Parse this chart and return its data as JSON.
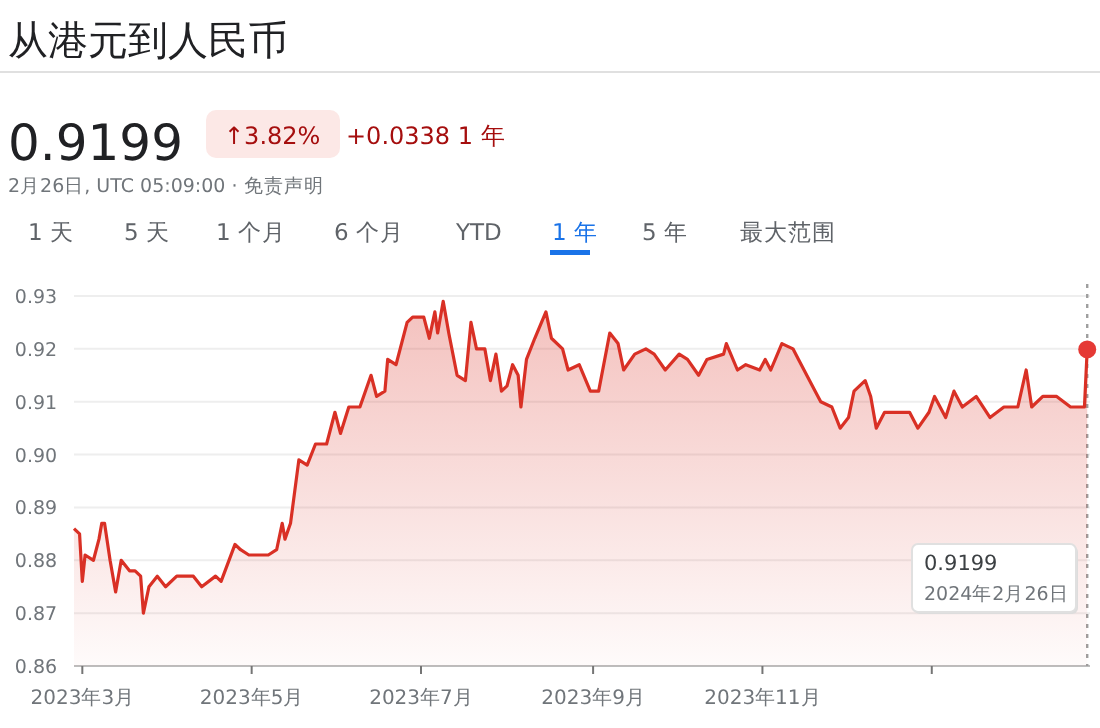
{
  "chart_data": {
    "type": "area",
    "title": "从港元到人民币",
    "annotations": [
      "0.9199",
      "↑3.82%",
      "+0.0338 1 年",
      "2月26日, UTC 05:09:00 · 免责声明",
      "1 天",
      "5 天",
      "1 个月",
      "6 个月",
      "YTD",
      "1 年",
      "5 年",
      "最大范围",
      "0.9199",
      "2024年2月26日"
    ],
    "x": [
      "2023-02-26",
      "2023-02-28",
      "2023-03-01",
      "2023-03-02",
      "2023-03-05",
      "2023-03-07",
      "2023-03-08",
      "2023-03-09",
      "2023-03-11",
      "2023-03-13",
      "2023-03-15",
      "2023-03-18",
      "2023-03-20",
      "2023-03-22",
      "2023-03-23",
      "2023-03-25",
      "2023-03-28",
      "2023-03-31",
      "2023-04-04",
      "2023-04-10",
      "2023-04-13",
      "2023-04-18",
      "2023-04-20",
      "2023-04-25",
      "2023-04-27",
      "2023-04-30",
      "2023-05-07",
      "2023-05-10",
      "2023-05-12",
      "2023-05-13",
      "2023-05-15",
      "2023-05-18",
      "2023-05-21",
      "2023-05-24",
      "2023-05-28",
      "2023-05-31",
      "2023-06-02",
      "2023-06-05",
      "2023-06-09",
      "2023-06-13",
      "2023-06-15",
      "2023-06-18",
      "2023-06-19",
      "2023-06-22",
      "2023-06-26",
      "2023-06-28",
      "2023-07-02",
      "2023-07-04",
      "2023-07-06",
      "2023-07-07",
      "2023-07-09",
      "2023-07-11",
      "2023-07-14",
      "2023-07-17",
      "2023-07-19",
      "2023-07-21",
      "2023-07-24",
      "2023-07-26",
      "2023-07-28",
      "2023-07-30",
      "2023-08-01",
      "2023-08-03",
      "2023-08-05",
      "2023-08-06",
      "2023-08-08",
      "2023-08-11",
      "2023-08-15",
      "2023-08-17",
      "2023-08-21",
      "2023-08-23",
      "2023-08-27",
      "2023-08-31",
      "2023-09-03",
      "2023-09-07",
      "2023-09-10",
      "2023-09-12",
      "2023-09-16",
      "2023-09-20",
      "2023-09-23",
      "2023-09-27",
      "2023-10-02",
      "2023-10-05",
      "2023-10-09",
      "2023-10-12",
      "2023-10-18",
      "2023-10-19",
      "2023-10-23",
      "2023-10-26",
      "2023-10-31",
      "2023-11-02",
      "2023-11-04",
      "2023-11-08",
      "2023-11-12",
      "2023-11-14",
      "2023-11-20",
      "2023-11-22",
      "2023-11-26",
      "2023-11-29",
      "2023-12-02",
      "2023-12-04",
      "2023-12-08",
      "2023-12-10",
      "2023-12-12",
      "2023-12-15",
      "2023-12-19",
      "2023-12-24",
      "2023-12-27",
      "2023-12-31",
      "2024-01-02",
      "2024-01-06",
      "2024-01-09",
      "2024-01-12",
      "2024-01-17",
      "2024-01-22",
      "2024-01-27",
      "2024-02-01",
      "2024-02-04",
      "2024-02-06",
      "2024-02-10",
      "2024-02-15",
      "2024-02-20",
      "2024-02-25",
      "2024-02-26"
    ],
    "series": [
      {
        "color": "#d93025",
        "values": [
          0.886,
          0.885,
          0.876,
          0.881,
          0.88,
          0.884,
          0.887,
          0.887,
          0.88,
          0.874,
          0.88,
          0.878,
          0.878,
          0.877,
          0.87,
          0.875,
          0.877,
          0.875,
          0.877,
          0.877,
          0.875,
          0.877,
          0.876,
          0.883,
          0.882,
          0.881,
          0.881,
          0.882,
          0.887,
          0.884,
          0.887,
          0.899,
          0.898,
          0.902,
          0.902,
          0.908,
          0.904,
          0.909,
          0.909,
          0.915,
          0.911,
          0.912,
          0.918,
          0.917,
          0.925,
          0.926,
          0.926,
          0.922,
          0.927,
          0.923,
          0.929,
          0.923,
          0.915,
          0.914,
          0.925,
          0.92,
          0.92,
          0.914,
          0.919,
          0.912,
          0.913,
          0.917,
          0.915,
          0.909,
          0.918,
          0.922,
          0.927,
          0.922,
          0.92,
          0.916,
          0.917,
          0.912,
          0.912,
          0.923,
          0.921,
          0.916,
          0.919,
          0.92,
          0.919,
          0.916,
          0.919,
          0.918,
          0.915,
          0.918,
          0.919,
          0.921,
          0.916,
          0.917,
          0.916,
          0.918,
          0.916,
          0.921,
          0.92,
          0.918,
          0.912,
          0.91,
          0.909,
          0.905,
          0.907,
          0.912,
          0.914,
          0.911,
          0.905,
          0.908,
          0.908,
          0.908,
          0.905,
          0.908,
          0.911,
          0.907,
          0.912,
          0.909,
          0.911,
          0.907,
          0.909,
          0.909,
          0.916,
          0.909,
          0.911,
          0.911,
          0.909,
          0.909,
          0.9199
        ]
      },
      {
        "type": "scatter",
        "color": "#e53935",
        "x": [
          "2024-02-26"
        ],
        "values": [
          0.9199
        ]
      }
    ],
    "xlim": [
      "2023-02-26",
      "2024-02-27"
    ],
    "xticks": [
      {
        "value": "2023-03",
        "label": "2023年3月"
      },
      {
        "value": "2023-05",
        "label": "2023年5月"
      },
      {
        "value": "2023-07",
        "label": "2023年7月"
      },
      {
        "value": "2023-09",
        "label": "2023年9月"
      },
      {
        "value": "2023-11",
        "label": "2023年11月"
      },
      {
        "value": "2024-01",
        "label": null
      }
    ],
    "ylim": [
      0.86,
      0.93
    ],
    "yticks": [
      0.86,
      0.87,
      0.88,
      0.89,
      {
        "value": 0.9,
        "label": "0.90"
      },
      0.91,
      0.92,
      0.93
    ],
    "grid": "y",
    "ref_lines": [
      {
        "axis": "x",
        "value": "2024-02-26",
        "color": "#9e9e9e",
        "line_style": "dotted"
      }
    ]
  }
}
